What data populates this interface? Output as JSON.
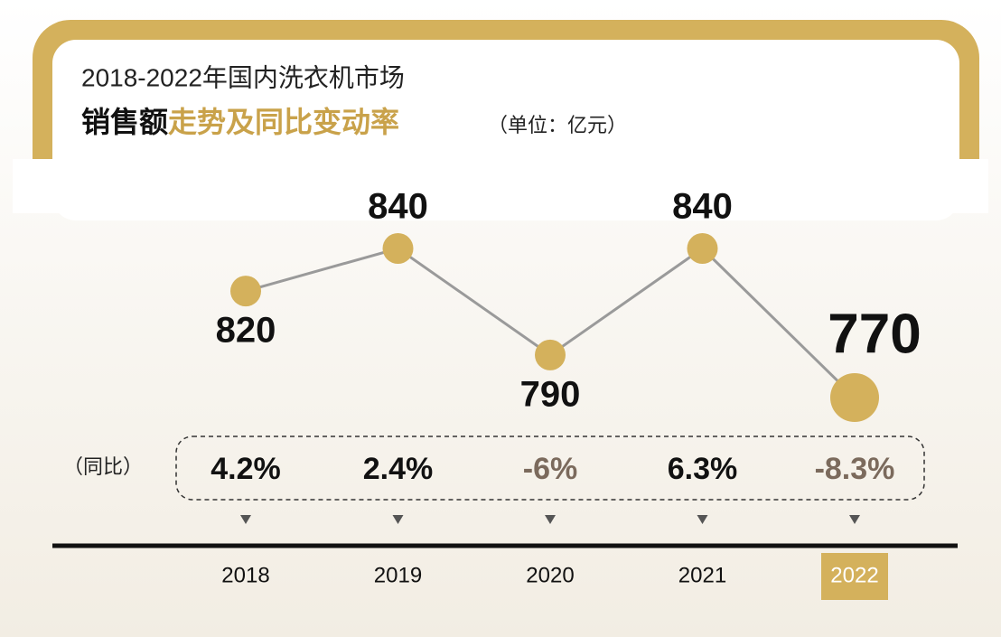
{
  "title": "2018-2022年国内洗衣机市场",
  "subtitle": [
    "销售额",
    "走势及同比变动率"
  ],
  "unit_note": "（单位：亿元）",
  "chart_data": {
    "type": "line",
    "categories": [
      "2018",
      "2019",
      "2020",
      "2021",
      "2022"
    ],
    "values": [
      820,
      840,
      790,
      840,
      770
    ],
    "color": "#d4b15c",
    "line_color": "#9a9a9a",
    "highlight_index": 4,
    "yoy": {
      "label": "（同比）",
      "values": [
        4.2,
        2.4,
        -6,
        6.3,
        -8.3
      ],
      "value_labels": [
        "4.2%",
        "2.4%",
        "-6%",
        "6.3%",
        "-8.3%"
      ],
      "color": "#111111",
      "negative_color": "#7b6a5c"
    }
  }
}
